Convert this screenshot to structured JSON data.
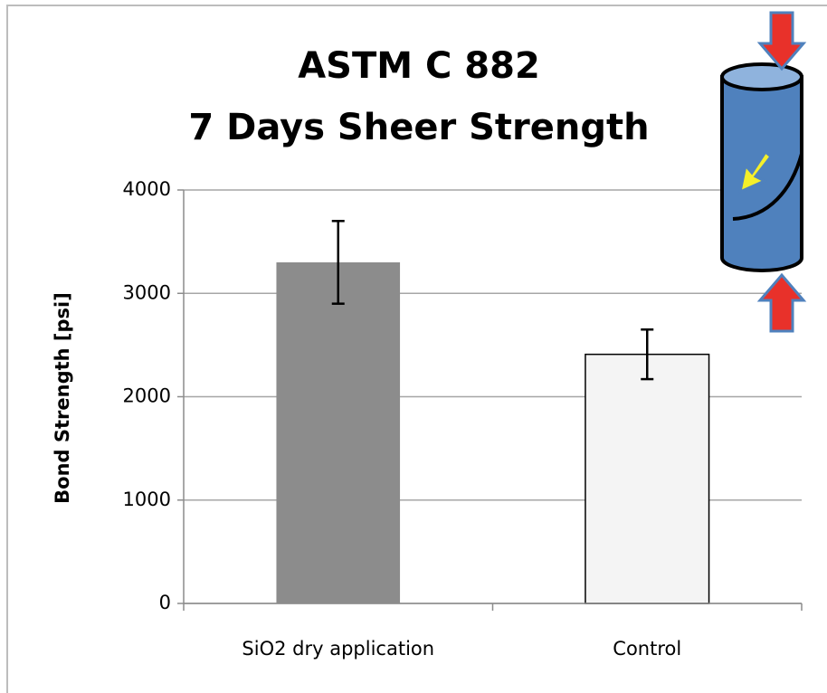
{
  "chart_data": {
    "type": "bar",
    "title": [
      "ASTM C 882",
      "7 Days Sheer Strength"
    ],
    "y_label": "Bond Strength [psi]",
    "categories": [
      "SiO2 dry application",
      "Control"
    ],
    "values": [
      3300,
      2410
    ],
    "errors": [
      400,
      240
    ],
    "colors": [
      "#8c8c8c",
      "#f4f4f4"
    ],
    "ylim": [
      0,
      4000
    ],
    "yticks": [
      0,
      1000,
      2000,
      3000,
      4000
    ],
    "grid": true
  }
}
